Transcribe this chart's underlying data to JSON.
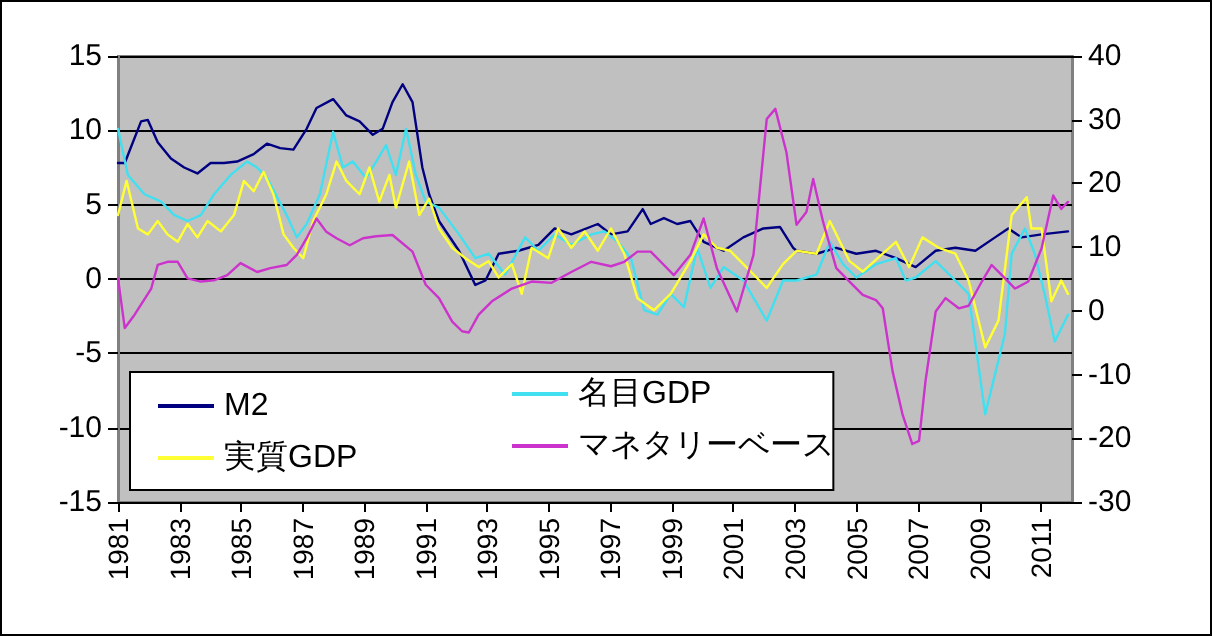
{
  "chart_data": {
    "type": "line",
    "marker": "none",
    "line_style": "solid",
    "grid": "y",
    "legend": "bottom left",
    "xlim": [
      1981,
      2012
    ],
    "xticks": [
      1981,
      1983,
      1985,
      1987,
      1989,
      1991,
      1993,
      1995,
      1997,
      1999,
      2001,
      2003,
      2005,
      2007,
      2009,
      2011
    ],
    "ylim": [
      -15,
      15
    ],
    "yticks": [
      -15,
      -10,
      -5,
      0,
      5,
      10,
      15
    ],
    "y2lim": [
      -30,
      40
    ],
    "y2ticks": [
      -30,
      -20,
      -10,
      0,
      10,
      20,
      30,
      40
    ],
    "series": [
      {
        "name": "M2",
        "color": "#000080",
        "x": [
          1981.0,
          1981.22,
          1981.75,
          1981.97,
          1982.29,
          1982.72,
          1983.15,
          1983.58,
          1984.01,
          1984.44,
          1984.87,
          1985.41,
          1985.84,
          1986.27,
          1986.7,
          1987.13,
          1987.45,
          1987.99,
          1988.42,
          1988.85,
          1989.28,
          1989.6,
          1989.92,
          1990.25,
          1990.57,
          1990.89,
          1991.11,
          1991.43,
          1992.08,
          1992.61,
          1992.94,
          1993.37,
          1994.01,
          1994.66,
          1995.19,
          1995.73,
          1996.59,
          1997.02,
          1997.56,
          1998.05,
          1998.31,
          1998.74,
          1999.17,
          1999.6,
          2000.03,
          2000.68,
          2001.32,
          2001.97,
          2002.51,
          2002.94,
          2003.05,
          2003.7,
          2004.34,
          2004.99,
          2005.63,
          2006.28,
          2006.92,
          2007.57,
          2008.21,
          2008.86,
          2009.5,
          2009.93,
          2010.36,
          2011.01,
          2011.87
        ],
        "values": [
          7.8,
          7.8,
          10.6,
          10.7,
          9.2,
          8.1,
          7.5,
          7.1,
          7.8,
          7.8,
          7.9,
          8.4,
          9.1,
          8.8,
          8.7,
          10.1,
          11.5,
          12.1,
          11.0,
          10.6,
          9.7,
          10.1,
          11.9,
          13.1,
          11.9,
          7.5,
          5.7,
          3.9,
          1.9,
          -0.4,
          -0.1,
          1.7,
          1.9,
          2.3,
          3.4,
          3.0,
          3.7,
          3.0,
          3.2,
          4.7,
          3.7,
          4.1,
          3.7,
          3.9,
          2.5,
          1.9,
          2.8,
          3.4,
          3.5,
          2.1,
          1.9,
          1.7,
          2.1,
          1.7,
          1.9,
          1.4,
          0.8,
          1.9,
          2.1,
          1.9,
          2.8,
          3.4,
          2.8,
          3.0,
          3.2
        ]
      },
      {
        "name": "名目GDP",
        "color": "#40e0f0",
        "x": [
          1981.0,
          1981.32,
          1981.86,
          1982.4,
          1982.83,
          1983.26,
          1983.69,
          1984.12,
          1984.66,
          1985.19,
          1985.52,
          1985.84,
          1986.48,
          1986.81,
          1987.13,
          1987.56,
          1987.99,
          1988.31,
          1988.63,
          1989.06,
          1989.39,
          1989.71,
          1990.03,
          1990.36,
          1990.68,
          1991.0,
          1991.43,
          1992.08,
          1992.61,
          1993.04,
          1993.58,
          1994.23,
          1994.66,
          1995.19,
          1995.73,
          1996.38,
          1996.81,
          1997.24,
          1997.67,
          1998.1,
          1998.53,
          1998.96,
          1999.39,
          1999.82,
          2000.25,
          2000.68,
          2001.32,
          2002.08,
          2002.61,
          2003.05,
          2003.7,
          2004.13,
          2004.56,
          2004.99,
          2005.63,
          2006.28,
          2006.6,
          2006.92,
          2007.57,
          2008.21,
          2008.64,
          2009.18,
          2009.5,
          2009.82,
          2010.04,
          2010.47,
          2010.79,
          2011.11,
          2011.44,
          2011.87
        ],
        "values": [
          10.1,
          7.0,
          5.7,
          5.2,
          4.3,
          3.9,
          4.3,
          5.7,
          7.0,
          7.9,
          7.5,
          6.8,
          4.3,
          2.8,
          3.7,
          5.7,
          9.9,
          7.5,
          7.9,
          6.8,
          7.9,
          9.0,
          7.0,
          10.1,
          7.0,
          5.2,
          4.8,
          3.0,
          1.4,
          1.7,
          0.3,
          2.8,
          1.9,
          3.0,
          2.3,
          3.0,
          3.2,
          2.5,
          1.4,
          -2.1,
          -2.4,
          -1.0,
          -1.9,
          2.1,
          -0.6,
          0.8,
          -0.1,
          -2.8,
          -0.1,
          -0.1,
          0.3,
          2.5,
          1.0,
          0.1,
          1.0,
          1.4,
          -0.1,
          0.1,
          1.2,
          -0.1,
          -1.0,
          -9.1,
          -6.4,
          -3.7,
          1.7,
          3.4,
          1.7,
          -1.0,
          -4.2,
          -2.4
        ]
      },
      {
        "name": "実質GDP",
        "color": "#ffff33",
        "x": [
          1981.0,
          1981.28,
          1981.65,
          1981.97,
          1982.29,
          1982.61,
          1982.94,
          1983.26,
          1983.58,
          1983.91,
          1984.34,
          1984.77,
          1985.09,
          1985.41,
          1985.73,
          1986.05,
          1986.38,
          1986.7,
          1987.02,
          1987.34,
          1987.77,
          1988.1,
          1988.42,
          1988.85,
          1989.17,
          1989.49,
          1989.82,
          1990.03,
          1990.46,
          1990.79,
          1991.11,
          1991.43,
          1991.86,
          1992.29,
          1992.72,
          1993.04,
          1993.37,
          1993.8,
          1994.12,
          1994.44,
          1994.98,
          1995.3,
          1995.73,
          1996.16,
          1996.59,
          1997.02,
          1997.45,
          1997.88,
          1998.42,
          1998.96,
          1999.6,
          2000.03,
          2000.46,
          2000.89,
          2001.32,
          2002.08,
          2002.61,
          2003.05,
          2003.7,
          2004.13,
          2004.77,
          2005.2,
          2005.85,
          2006.28,
          2006.71,
          2007.14,
          2007.67,
          2008.21,
          2008.64,
          2009.18,
          2009.61,
          2010.04,
          2010.53,
          2010.68,
          2011.01,
          2011.33,
          2011.65,
          2011.87
        ],
        "values": [
          4.3,
          6.6,
          3.4,
          3.0,
          3.9,
          3.0,
          2.5,
          3.7,
          2.8,
          3.9,
          3.2,
          4.3,
          6.6,
          5.9,
          7.2,
          5.7,
          3.0,
          2.1,
          1.4,
          3.9,
          5.7,
          7.9,
          6.6,
          5.7,
          7.5,
          5.2,
          7.0,
          4.8,
          7.9,
          4.3,
          5.4,
          3.4,
          2.1,
          1.4,
          0.8,
          1.2,
          0.1,
          1.0,
          -1.0,
          2.1,
          1.4,
          3.4,
          2.1,
          3.2,
          1.9,
          3.4,
          1.7,
          -1.3,
          -2.1,
          -1.0,
          1.2,
          3.0,
          2.1,
          1.9,
          1.0,
          -0.6,
          1.0,
          1.9,
          1.7,
          3.9,
          1.2,
          0.5,
          1.7,
          2.5,
          0.8,
          2.8,
          2.1,
          1.7,
          -0.1,
          -4.6,
          -2.8,
          4.3,
          5.5,
          3.4,
          3.4,
          -1.5,
          -0.1,
          -1.0
        ]
      },
      {
        "name": "マネタリーベース",
        "color": "#cc33cc",
        "axis": "y2",
        "x": [
          1981.0,
          1981.22,
          1981.54,
          1982.08,
          1982.29,
          1982.61,
          1982.94,
          1983.26,
          1983.69,
          1984.12,
          1984.55,
          1984.98,
          1985.52,
          1985.95,
          1986.48,
          1986.81,
          1987.13,
          1987.45,
          1987.77,
          1988.1,
          1988.53,
          1988.96,
          1989.39,
          1989.92,
          1990.57,
          1991.0,
          1991.43,
          1991.86,
          1992.18,
          1992.4,
          1992.72,
          1993.15,
          1993.8,
          1994.44,
          1995.09,
          1995.73,
          1996.38,
          1997.02,
          1997.45,
          1997.88,
          1998.31,
          1998.74,
          1999.06,
          1999.6,
          2000.03,
          2000.46,
          2001.11,
          2001.65,
          2002.08,
          2002.36,
          2002.72,
          2003.05,
          2003.37,
          2003.59,
          2003.91,
          2004.34,
          2004.77,
          2005.2,
          2005.63,
          2005.85,
          2006.17,
          2006.49,
          2006.81,
          2007.03,
          2007.24,
          2007.57,
          2007.89,
          2008.32,
          2008.64,
          2009.07,
          2009.39,
          2009.72,
          2010.15,
          2010.58,
          2011.01,
          2011.39,
          2011.65,
          2011.87
        ],
        "values": [
          5.1,
          -2.7,
          -0.6,
          3.5,
          7.2,
          7.7,
          7.7,
          5.1,
          4.6,
          4.8,
          5.6,
          7.5,
          6.1,
          6.7,
          7.2,
          8.8,
          11.4,
          14.5,
          12.4,
          11.4,
          10.3,
          11.4,
          11.7,
          11.9,
          9.3,
          4.1,
          2.0,
          -1.7,
          -3.2,
          -3.4,
          -0.6,
          1.5,
          3.5,
          4.6,
          4.4,
          6.1,
          7.7,
          7.0,
          7.7,
          9.3,
          9.3,
          7.2,
          5.6,
          8.8,
          14.5,
          6.7,
          -0.1,
          8.8,
          30.1,
          31.7,
          24.9,
          13.5,
          15.5,
          20.7,
          14.0,
          6.7,
          4.6,
          2.5,
          1.7,
          0.4,
          -9.5,
          -16.2,
          -20.9,
          -20.4,
          -11.0,
          -0.1,
          2.0,
          0.4,
          0.8,
          4.6,
          7.2,
          5.6,
          3.5,
          4.6,
          9.8,
          18.1,
          16.0,
          17.1
        ]
      }
    ]
  }
}
